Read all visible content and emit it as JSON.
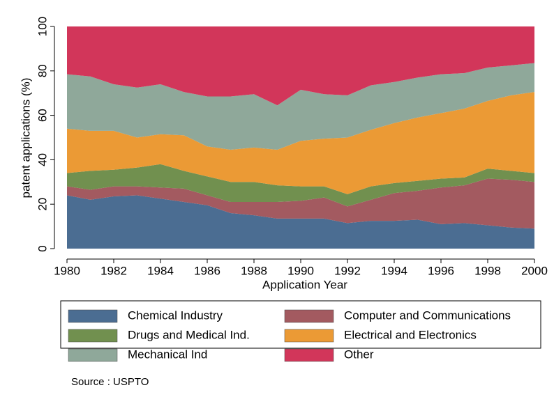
{
  "chart_data": {
    "type": "stacked_area",
    "x_label": "Application Year",
    "y_label": "patent applications (%)",
    "source": "Source : USPTO",
    "x": [
      1980,
      1981,
      1982,
      1983,
      1984,
      1985,
      1986,
      1987,
      1988,
      1989,
      1990,
      1991,
      1992,
      1993,
      1994,
      1995,
      1996,
      1997,
      1998,
      1999,
      2000
    ],
    "xlim": [
      1980,
      2000
    ],
    "xticks": [
      1980,
      1982,
      1984,
      1986,
      1988,
      1990,
      1992,
      1994,
      1996,
      1998,
      2000
    ],
    "ylim": [
      0,
      100
    ],
    "yticks": [
      0,
      20,
      40,
      60,
      80,
      100
    ],
    "series": [
      {
        "name": "Chemical Industry",
        "color": "#4b6d92",
        "values": [
          24,
          22,
          23.5,
          24,
          22.5,
          21,
          19.5,
          16,
          15,
          13.5,
          13.5,
          13.5,
          11.5,
          12.5,
          12.5,
          13,
          11,
          11.5,
          10.5,
          9.5,
          9
        ]
      },
      {
        "name": "Computer and Communications",
        "color": "#a35a60",
        "values": [
          4,
          4.5,
          4.5,
          4,
          5,
          6,
          4.5,
          5,
          6,
          7.5,
          8,
          9.5,
          7.5,
          9.5,
          12.5,
          13,
          16.5,
          17,
          21,
          21.5,
          21
        ]
      },
      {
        "name": "Drugs and Medical Ind.",
        "color": "#71904f",
        "values": [
          6,
          8.5,
          7.5,
          8.5,
          10.5,
          8,
          8.5,
          9,
          9,
          7.5,
          6.5,
          5,
          5.5,
          6,
          4.5,
          4.5,
          4,
          3.5,
          4.5,
          4,
          4
        ]
      },
      {
        "name": "Electrical and Electronics",
        "color": "#eb9a35",
        "values": [
          20,
          18,
          17.5,
          13.5,
          13.5,
          16,
          13.5,
          14.5,
          15.5,
          16,
          20.5,
          21.5,
          25.5,
          25.5,
          27,
          28.5,
          29.5,
          31,
          30.5,
          34,
          36.5
        ]
      },
      {
        "name": "Mechanical Ind",
        "color": "#8fa89a",
        "values": [
          24.5,
          24.5,
          21,
          22.5,
          22.5,
          19.5,
          22.5,
          24,
          24,
          20,
          23,
          20,
          19,
          20,
          18.5,
          18,
          17.5,
          16,
          15,
          13.5,
          13
        ]
      },
      {
        "name": "Other",
        "color": "#d2365a",
        "values": [
          21.5,
          22.5,
          26,
          27.5,
          26,
          29.5,
          31.5,
          31.5,
          30.5,
          35.5,
          28.5,
          30.5,
          31,
          26.5,
          25,
          23,
          21.5,
          21,
          18.5,
          17.5,
          16.5
        ]
      }
    ]
  }
}
